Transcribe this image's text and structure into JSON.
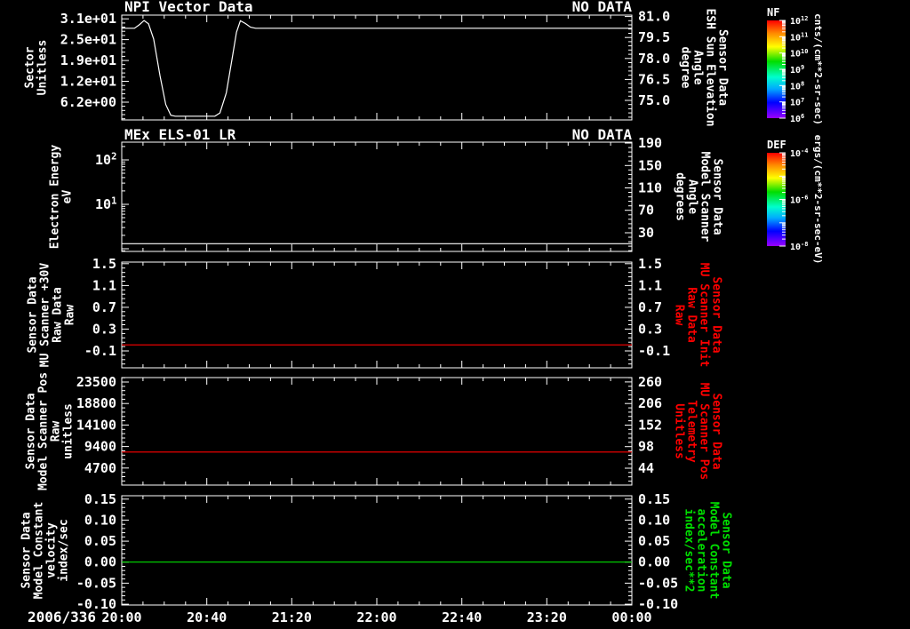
{
  "chart_data": {
    "type": "line",
    "background": "#000000",
    "foreground": "#ffffff",
    "x_axis": {
      "date_label": "2006/336",
      "tick_labels": [
        "20:00",
        "20:40",
        "21:20",
        "22:00",
        "22:40",
        "23:20",
        "00:00"
      ],
      "tick_hours": [
        0,
        0.6667,
        1.3333,
        2,
        2.6667,
        3.3333,
        4
      ],
      "range_hours": [
        0,
        4
      ],
      "minor_step_hours": 0.166667
    },
    "panels": [
      {
        "id": "npi-vector",
        "title": "NPI Vector Data",
        "status_text": "NO DATA",
        "left_axis": {
          "label_lines": [
            "Sector",
            "Unitless"
          ],
          "label_color": "#ffffff",
          "scale": "linear",
          "ylim": [
            0.9,
            32.1
          ],
          "minor_step": 1.24,
          "ticks": [
            {
              "value": 31.0,
              "label": "3.1e+01"
            },
            {
              "value": 24.8,
              "label": "2.5e+01"
            },
            {
              "value": 18.6,
              "label": "1.9e+01"
            },
            {
              "value": 12.4,
              "label": "1.2e+01"
            },
            {
              "value": 6.2,
              "label": "6.2e+00"
            }
          ]
        },
        "right_axis": {
          "label_lines": [
            "Sensor Data",
            "ESH Sun Elevation",
            "Angle",
            "degree"
          ],
          "label_color": "#ffffff",
          "scale": "linear",
          "ylim": [
            73.6,
            81.1
          ],
          "minor_step": 0.3,
          "ticks": [
            {
              "value": 81.0,
              "label": "81.0"
            },
            {
              "value": 79.5,
              "label": "79.5"
            },
            {
              "value": 78.0,
              "label": "78.0"
            },
            {
              "value": 76.5,
              "label": "76.5"
            },
            {
              "value": 75.0,
              "label": "75.0"
            }
          ]
        },
        "series": [
          {
            "name": "sector-trace",
            "color": "#ffffff",
            "axis": "left",
            "x": [
              0,
              0.1,
              0.14,
              0.175,
              0.21,
              0.25,
              0.3,
              0.345,
              0.385,
              0.42,
              0.73,
              0.77,
              0.82,
              0.865,
              0.9,
              0.93,
              0.97,
              1.01,
              1.05,
              4.0
            ],
            "y": [
              28.2,
              28.2,
              29.3,
              30.5,
              29.5,
              25.0,
              14.0,
              5.5,
              2.3,
              2.0,
              2.0,
              3.0,
              9.0,
              19.0,
              27.0,
              30.4,
              29.6,
              28.5,
              28.2,
              28.2
            ]
          }
        ]
      },
      {
        "id": "mex-els",
        "title": "MEx ELS-01 LR",
        "status_text": "NO DATA",
        "left_axis": {
          "label_lines": [
            "Electron Energy",
            "eV"
          ],
          "label_color": "#ffffff",
          "scale": "log",
          "ylim": [
            0.87,
            251
          ],
          "ticks": [
            {
              "value": 100,
              "label": "10^2"
            },
            {
              "value": 10,
              "label": "10^1"
            }
          ]
        },
        "right_axis": {
          "label_lines": [
            "Sensor Data",
            "Model Scanner",
            "Angle",
            "degrees"
          ],
          "label_color": "#ffffff",
          "scale": "linear",
          "ylim": [
            -3.3,
            191.6
          ],
          "minor_step": 8,
          "ticks": [
            {
              "value": 190,
              "label": "190"
            },
            {
              "value": 150,
              "label": "150"
            },
            {
              "value": 110,
              "label": "110"
            },
            {
              "value": 70,
              "label": "70"
            },
            {
              "value": 30,
              "label": "30"
            }
          ]
        },
        "series": [
          {
            "name": "electron-energy-floor",
            "color": "#ffffff",
            "axis": "left",
            "x": [
              0,
              4
            ],
            "y": [
              1.3,
              1.3
            ]
          }
        ]
      },
      {
        "id": "mu-scanner-raw",
        "title": "",
        "status_text": "",
        "left_axis": {
          "label_lines": [
            "Sensor Data",
            "MU Scanner +30V",
            "Raw Data",
            "Raw"
          ],
          "label_color": "#ffffff",
          "scale": "linear",
          "ylim": [
            -0.41,
            1.53
          ],
          "minor_step": 0.08,
          "ticks": [
            {
              "value": 1.5,
              "label": "1.5"
            },
            {
              "value": 1.1,
              "label": "1.1"
            },
            {
              "value": 0.7,
              "label": "0.7"
            },
            {
              "value": 0.3,
              "label": "0.3"
            },
            {
              "value": -0.1,
              "label": "-0.1"
            }
          ]
        },
        "right_axis": {
          "label_lines": [
            "Sensor Data",
            "MU Scanner Init",
            "Raw Data",
            "Raw"
          ],
          "label_color": "#ff0000",
          "scale": "linear",
          "ylim": [
            -0.41,
            1.53
          ],
          "minor_step": 0.08,
          "ticks": [
            {
              "value": 1.5,
              "label": "1.5"
            },
            {
              "value": 1.1,
              "label": "1.1"
            },
            {
              "value": 0.7,
              "label": "0.7"
            },
            {
              "value": 0.3,
              "label": "0.3"
            },
            {
              "value": -0.1,
              "label": "-0.1"
            }
          ]
        },
        "series": [
          {
            "name": "mu-scanner-30v-raw",
            "color": "#ff0000",
            "axis": "left",
            "x": [
              0,
              4
            ],
            "y": [
              0.01,
              0.01
            ]
          }
        ]
      },
      {
        "id": "model-scanner-pos",
        "title": "",
        "status_text": "",
        "left_axis": {
          "label_lines": [
            "Sensor Data",
            "Model Scanner Pos",
            "Raw",
            "unitless"
          ],
          "label_color": "#ffffff",
          "scale": "linear",
          "ylim": [
            980,
            24480
          ],
          "minor_step": 940,
          "ticks": [
            {
              "value": 23500,
              "label": "23500"
            },
            {
              "value": 18800,
              "label": "18800"
            },
            {
              "value": 14100,
              "label": "14100"
            },
            {
              "value": 9400,
              "label": "9400"
            },
            {
              "value": 4700,
              "label": "4700"
            }
          ]
        },
        "right_axis": {
          "label_lines": [
            "Sensor Data",
            "MU Scanner Pos",
            "Telemetry",
            "Unitless"
          ],
          "label_color": "#ff0000",
          "scale": "linear",
          "ylim": [
            1.7,
            271
          ],
          "minor_step": 10.8,
          "ticks": [
            {
              "value": 260,
              "label": "260"
            },
            {
              "value": 206,
              "label": "206"
            },
            {
              "value": 152,
              "label": "152"
            },
            {
              "value": 98,
              "label": "98"
            },
            {
              "value": 44,
              "label": "44"
            }
          ]
        },
        "series": [
          {
            "name": "model-scanner-pos-raw",
            "color": "#ff0000",
            "axis": "left",
            "x": [
              0,
              4
            ],
            "y": [
              8200,
              8200
            ]
          }
        ]
      },
      {
        "id": "model-constant",
        "title": "",
        "status_text": "",
        "left_axis": {
          "label_lines": [
            "Sensor Data",
            "Model Constant",
            "velocity",
            "index/sec"
          ],
          "label_color": "#ffffff",
          "scale": "linear",
          "ylim": [
            -0.102,
            0.158
          ],
          "minor_step": 0.01,
          "ticks": [
            {
              "value": 0.15,
              "label": "0.15"
            },
            {
              "value": 0.1,
              "label": "0.10"
            },
            {
              "value": 0.05,
              "label": "0.05"
            },
            {
              "value": 0.0,
              "label": "0.00"
            },
            {
              "value": -0.05,
              "label": "-0.05"
            },
            {
              "value": -0.1,
              "label": "-0.10"
            }
          ]
        },
        "right_axis": {
          "label_lines": [
            "Sensor Data",
            "Model Constant",
            "acceleration",
            "index/sec**2"
          ],
          "label_color": "#00e000",
          "scale": "linear",
          "ylim": [
            -0.102,
            0.158
          ],
          "minor_step": 0.01,
          "ticks": [
            {
              "value": 0.15,
              "label": "0.15"
            },
            {
              "value": 0.1,
              "label": "0.10"
            },
            {
              "value": 0.05,
              "label": "0.05"
            },
            {
              "value": 0.0,
              "label": "0.00"
            },
            {
              "value": -0.05,
              "label": "-0.05"
            },
            {
              "value": -0.1,
              "label": "-0.10"
            }
          ]
        },
        "series": [
          {
            "name": "model-constant-velocity",
            "color": "#00e000",
            "axis": "left",
            "x": [
              0,
              4
            ],
            "y": [
              0.0,
              0.0
            ]
          }
        ]
      }
    ],
    "colorbars": [
      {
        "id": "nf",
        "label": "NF",
        "units": "cnts/(cm**2-sr-sec)",
        "decades": 6,
        "label_every": 1,
        "tick_labels": [
          "10^12",
          "10^11",
          "10^10",
          "10^9",
          "10^8",
          "10^7",
          "10^6"
        ],
        "gradient": [
          {
            "o": 0,
            "c": "#ff0000"
          },
          {
            "o": 0.13,
            "c": "#ff8800"
          },
          {
            "o": 0.27,
            "c": "#ffff00"
          },
          {
            "o": 0.42,
            "c": "#00dd00"
          },
          {
            "o": 0.58,
            "c": "#00ffcc"
          },
          {
            "o": 0.7,
            "c": "#00aaff"
          },
          {
            "o": 0.84,
            "c": "#0000ff"
          },
          {
            "o": 1,
            "c": "#9900ff"
          }
        ]
      },
      {
        "id": "def",
        "label": "DEF",
        "units": "ergs/(cm**2-sr-sec-eV)",
        "decades": 4,
        "label_every": 2,
        "tick_labels": [
          "10^-4",
          "10^-6",
          "10^-8"
        ],
        "gradient": [
          {
            "o": 0,
            "c": "#ff0000"
          },
          {
            "o": 0.13,
            "c": "#ff8800"
          },
          {
            "o": 0.27,
            "c": "#ffff00"
          },
          {
            "o": 0.42,
            "c": "#00dd00"
          },
          {
            "o": 0.58,
            "c": "#00ffcc"
          },
          {
            "o": 0.7,
            "c": "#00aaff"
          },
          {
            "o": 0.84,
            "c": "#0000ff"
          },
          {
            "o": 1,
            "c": "#9900ff"
          }
        ]
      }
    ]
  }
}
